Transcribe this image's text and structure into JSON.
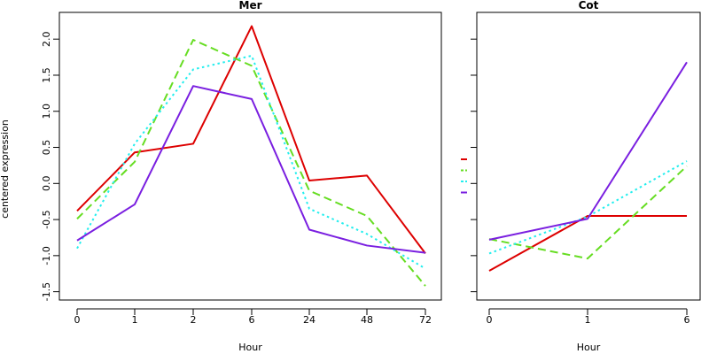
{
  "colors": {
    "red": "#dd0000",
    "green": "#66dd22",
    "cyan": "#22eeee",
    "purple": "#7a1fe0"
  },
  "chart_data": [
    {
      "type": "line",
      "title": "Mer",
      "xlabel": "Hour",
      "ylabel": "centered expression",
      "categories": [
        "0",
        "1",
        "2",
        "6",
        "24",
        "48",
        "72"
      ],
      "ylim": [
        -1.55,
        2.3
      ],
      "yticks": [
        "-1.5",
        "-1.0",
        "-0.5",
        "0.0",
        "0.5",
        "1.0",
        "1.5",
        "2.0"
      ],
      "series": [
        {
          "color": "#dd0000",
          "dash": "solid",
          "values": [
            -0.38,
            0.43,
            0.55,
            2.18,
            0.04,
            0.11,
            -0.97
          ]
        },
        {
          "color": "#66dd22",
          "dash": "dashed",
          "values": [
            -0.49,
            0.3,
            1.99,
            1.63,
            -0.1,
            -0.45,
            -1.42
          ]
        },
        {
          "color": "#22eeee",
          "dash": "dotted",
          "values": [
            -0.9,
            0.55,
            1.58,
            1.77,
            -0.35,
            -0.7,
            -1.18
          ]
        },
        {
          "color": "#7a1fe0",
          "dash": "solid",
          "values": [
            -0.79,
            -0.29,
            1.35,
            1.17,
            -0.64,
            -0.86,
            -0.96
          ]
        }
      ]
    },
    {
      "type": "line",
      "title": "Cot",
      "xlabel": "Hour",
      "ylabel": "",
      "categories": [
        "0",
        "1",
        "6"
      ],
      "ylim": [
        -1.55,
        2.3
      ],
      "series": [
        {
          "color": "#dd0000",
          "dash": "solid",
          "values": [
            -1.21,
            -0.45,
            -0.45
          ]
        },
        {
          "color": "#66dd22",
          "dash": "dashed",
          "values": [
            -0.77,
            -1.04,
            0.24
          ]
        },
        {
          "color": "#22eeee",
          "dash": "dotted",
          "values": [
            -0.97,
            -0.46,
            0.31
          ]
        },
        {
          "color": "#7a1fe0",
          "dash": "solid",
          "values": [
            -0.78,
            -0.49,
            1.68
          ]
        }
      ]
    }
  ]
}
